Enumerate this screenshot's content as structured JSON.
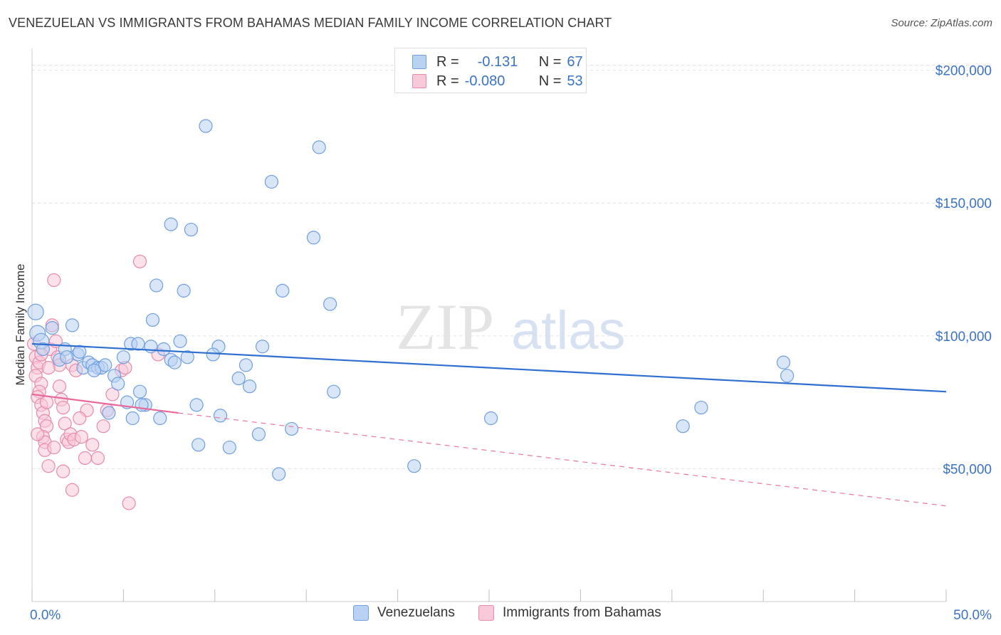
{
  "header": {
    "title": "VENEZUELAN VS IMMIGRANTS FROM BAHAMAS MEDIAN FAMILY INCOME CORRELATION CHART",
    "source": "Source: ZipAtlas.com"
  },
  "watermark": {
    "zip": "ZIP",
    "atlas": "atlas"
  },
  "stats_legend": [
    {
      "r_label": "R =",
      "r_value": "-0.131",
      "n_label": "N =",
      "n_value": "67"
    },
    {
      "r_label": "R =",
      "r_value": "-0.080",
      "n_label": "N =",
      "n_value": "53"
    }
  ],
  "chart_data": {
    "type": "scatter",
    "title": "VENEZUELAN VS IMMIGRANTS FROM BAHAMAS MEDIAN FAMILY INCOME CORRELATION CHART",
    "xlabel": "",
    "ylabel": "Median Family Income",
    "xlim": [
      0,
      50
    ],
    "ylim": [
      0,
      205000
    ],
    "x_tick_labels": [
      "0.0%",
      "50.0%"
    ],
    "y_ticks": [
      50000,
      100000,
      150000,
      200000
    ],
    "y_tick_labels": [
      "$50,000",
      "$100,000",
      "$150,000",
      "$200,000"
    ],
    "grid": true,
    "legend_position": "bottom",
    "series": [
      {
        "name": "Venezuelans",
        "color": "#6f9fde",
        "fill": "#b9d1f2",
        "trend": {
          "x": [
            0,
            50
          ],
          "y": [
            97000,
            79000
          ],
          "style": "solid"
        },
        "points": [
          [
            0.2,
            109000
          ],
          [
            0.3,
            101000
          ],
          [
            0.5,
            98000
          ],
          [
            1.1,
            103000
          ],
          [
            2.2,
            104000
          ],
          [
            1.8,
            95000
          ],
          [
            2.5,
            93000
          ],
          [
            2.6,
            94000
          ],
          [
            1.5,
            91000
          ],
          [
            2.8,
            88000
          ],
          [
            3.1,
            90000
          ],
          [
            3.3,
            89000
          ],
          [
            3.6,
            88000
          ],
          [
            3.8,
            88000
          ],
          [
            4.0,
            89000
          ],
          [
            4.5,
            85000
          ],
          [
            4.7,
            82000
          ],
          [
            5.0,
            92000
          ],
          [
            5.2,
            75000
          ],
          [
            4.2,
            71000
          ],
          [
            5.5,
            69000
          ],
          [
            5.4,
            97000
          ],
          [
            5.8,
            97000
          ],
          [
            6.2,
            74000
          ],
          [
            5.9,
            79000
          ],
          [
            6.5,
            96000
          ],
          [
            6.6,
            106000
          ],
          [
            6.8,
            119000
          ],
          [
            7.0,
            69000
          ],
          [
            7.2,
            95000
          ],
          [
            7.6,
            91000
          ],
          [
            7.8,
            90000
          ],
          [
            8.1,
            98000
          ],
          [
            8.3,
            117000
          ],
          [
            8.5,
            92000
          ],
          [
            7.6,
            142000
          ],
          [
            8.7,
            140000
          ],
          [
            9.0,
            74000
          ],
          [
            9.1,
            59000
          ],
          [
            9.5,
            179000
          ],
          [
            10.2,
            96000
          ],
          [
            10.3,
            70000
          ],
          [
            10.8,
            58000
          ],
          [
            11.3,
            84000
          ],
          [
            11.7,
            89000
          ],
          [
            11.9,
            81000
          ],
          [
            12.4,
            63000
          ],
          [
            12.6,
            96000
          ],
          [
            13.1,
            158000
          ],
          [
            13.5,
            48000
          ],
          [
            13.7,
            117000
          ],
          [
            14.2,
            65000
          ],
          [
            15.4,
            137000
          ],
          [
            15.7,
            171000
          ],
          [
            16.3,
            112000
          ],
          [
            16.5,
            79000
          ],
          [
            20.9,
            51000
          ],
          [
            25.1,
            69000
          ],
          [
            35.6,
            66000
          ],
          [
            36.6,
            73000
          ],
          [
            41.1,
            90000
          ],
          [
            41.3,
            85000
          ],
          [
            0.6,
            95000
          ],
          [
            1.9,
            92000
          ],
          [
            3.4,
            87000
          ],
          [
            6.0,
            74000
          ],
          [
            9.9,
            93000
          ]
        ]
      },
      {
        "name": "Immigrants from Bahamas",
        "color": "#e88aa9",
        "fill": "#f8c9d8",
        "trend": {
          "x": [
            0,
            8
          ],
          "y": [
            78000,
            71000
          ],
          "style": "solid"
        },
        "trend_extended": {
          "x": [
            8,
            50
          ],
          "y": [
            71000,
            36000
          ],
          "style": "dashed"
        },
        "points": [
          [
            0.1,
            97000
          ],
          [
            0.2,
            92000
          ],
          [
            0.3,
            88000
          ],
          [
            0.2,
            85000
          ],
          [
            0.4,
            90000
          ],
          [
            0.5,
            82000
          ],
          [
            0.4,
            79000
          ],
          [
            0.3,
            77000
          ],
          [
            0.5,
            74000
          ],
          [
            0.6,
            71000
          ],
          [
            0.7,
            68000
          ],
          [
            0.8,
            66000
          ],
          [
            0.6,
            62000
          ],
          [
            0.7,
            60000
          ],
          [
            0.7,
            57000
          ],
          [
            0.9,
            51000
          ],
          [
            1.0,
            95000
          ],
          [
            1.1,
            104000
          ],
          [
            1.2,
            121000
          ],
          [
            1.3,
            98000
          ],
          [
            1.4,
            92000
          ],
          [
            1.5,
            89000
          ],
          [
            1.6,
            76000
          ],
          [
            1.7,
            73000
          ],
          [
            1.8,
            67000
          ],
          [
            1.9,
            61000
          ],
          [
            1.7,
            49000
          ],
          [
            2.0,
            60000
          ],
          [
            2.1,
            63000
          ],
          [
            2.2,
            89000
          ],
          [
            2.3,
            61000
          ],
          [
            2.2,
            42000
          ],
          [
            2.7,
            62000
          ],
          [
            2.9,
            54000
          ],
          [
            3.0,
            72000
          ],
          [
            3.6,
            54000
          ],
          [
            3.9,
            66000
          ],
          [
            4.1,
            72000
          ],
          [
            4.4,
            78000
          ],
          [
            4.9,
            87000
          ],
          [
            5.1,
            88000
          ],
          [
            5.3,
            37000
          ],
          [
            5.9,
            128000
          ],
          [
            6.9,
            93000
          ],
          [
            0.8,
            75000
          ],
          [
            1.2,
            58000
          ],
          [
            2.4,
            87000
          ],
          [
            0.3,
            63000
          ],
          [
            1.5,
            81000
          ],
          [
            0.9,
            88000
          ],
          [
            2.6,
            69000
          ],
          [
            3.3,
            59000
          ],
          [
            0.5,
            93000
          ]
        ]
      }
    ]
  },
  "bottom_legend": [
    {
      "label": "Venezuelans"
    },
    {
      "label": "Immigrants from Bahamas"
    }
  ]
}
